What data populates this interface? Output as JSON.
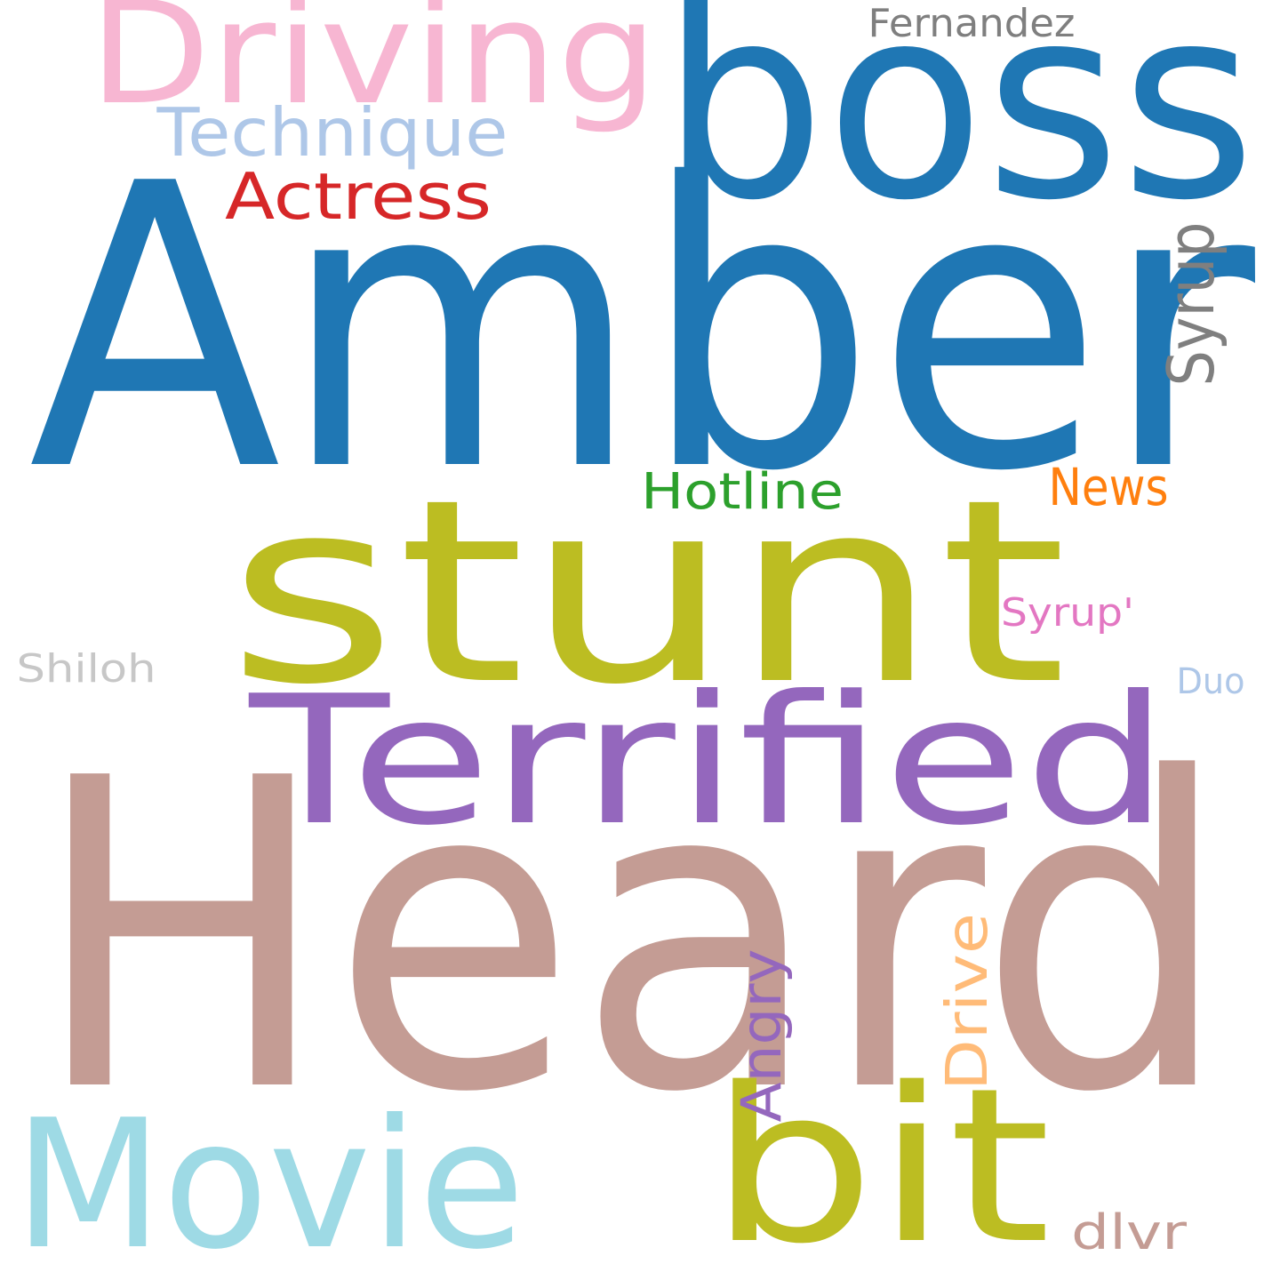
{
  "words": [
    {
      "text": "Amber",
      "color": "#1f77b4"
    },
    {
      "text": "Heard",
      "color": "#c49c94"
    },
    {
      "text": "stunt",
      "color": "#bcbd22"
    },
    {
      "text": "boss",
      "color": "#1f77b4"
    },
    {
      "text": "Terrified",
      "color": "#9467bd"
    },
    {
      "text": "Driving",
      "color": "#f7b6d2"
    },
    {
      "text": "Movie",
      "color": "#9edae5"
    },
    {
      "text": "bit",
      "color": "#bcbd22"
    },
    {
      "text": "Technique",
      "color": "#aec7e8"
    },
    {
      "text": "Actress",
      "color": "#d62728"
    },
    {
      "text": "Syrup",
      "color": "#7f7f7f"
    },
    {
      "text": "Hotline",
      "color": "#2ca02c"
    },
    {
      "text": "News",
      "color": "#ff7f0e"
    },
    {
      "text": "Drive",
      "color": "#ffbb78"
    },
    {
      "text": "Angry",
      "color": "#9467bd"
    },
    {
      "text": "Fernandez",
      "color": "#7f7f7f"
    },
    {
      "text": "Syrup'",
      "color": "#e377c2"
    },
    {
      "text": "Shiloh",
      "color": "#c7c7c7"
    },
    {
      "text": "Duo",
      "color": "#aec7e8"
    },
    {
      "text": "dlvr",
      "color": "#c49c94"
    }
  ]
}
